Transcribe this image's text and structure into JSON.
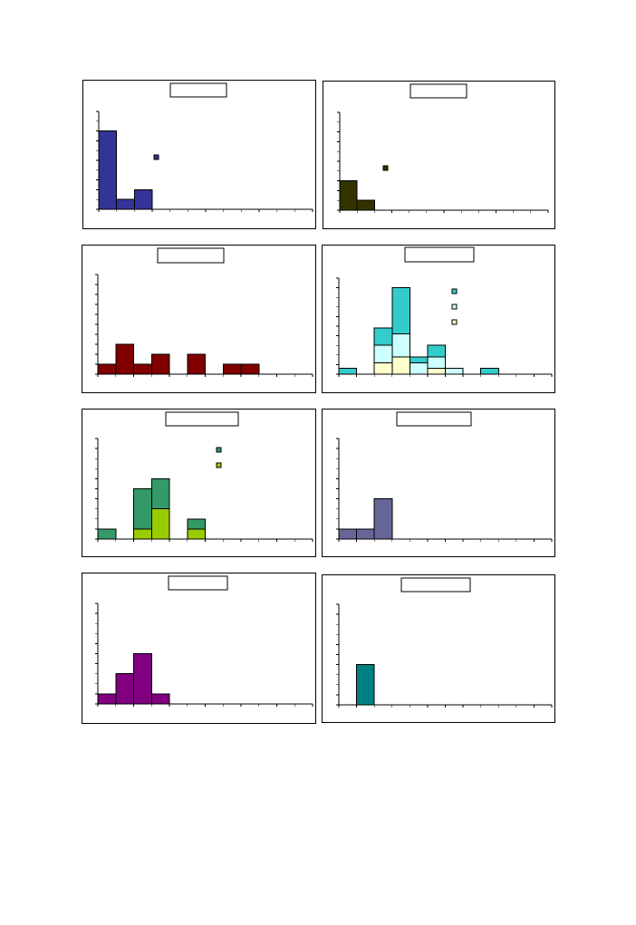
{
  "chart_data": [
    {
      "type": "bar",
      "title": "",
      "ylim": [
        0,
        10
      ],
      "x_bins": 12,
      "grid": false,
      "series": [
        {
          "name": "",
          "color": "#333399",
          "values": [
            8,
            1,
            2,
            0,
            0,
            0,
            0,
            0,
            0,
            0,
            0,
            0
          ]
        }
      ],
      "legend": "center"
    },
    {
      "type": "bar",
      "title": "",
      "ylim": [
        0,
        10
      ],
      "x_bins": 12,
      "grid": false,
      "series": [
        {
          "name": "",
          "color": "#333300",
          "values": [
            3,
            1,
            0,
            0,
            0,
            0,
            0,
            0,
            0,
            0,
            0,
            0
          ]
        }
      ],
      "legend": "center"
    },
    {
      "type": "bar",
      "title": "",
      "ylim": [
        0,
        10
      ],
      "x_bins": 12,
      "grid": false,
      "series": [
        {
          "name": "",
          "color": "#800000",
          "values": [
            1,
            3,
            1,
            2,
            0,
            2,
            0,
            1,
            1,
            0,
            0,
            0
          ]
        }
      ],
      "legend": "none"
    },
    {
      "type": "bar",
      "stacked": true,
      "title": "",
      "ylim": [
        0,
        10
      ],
      "x_bins": 12,
      "grid": false,
      "series": [
        {
          "name": "",
          "color": "#ffffcc",
          "values": [
            0,
            0,
            1.2,
            1.8,
            0,
            0.6,
            0,
            0,
            0,
            0,
            0,
            0
          ]
        },
        {
          "name": "",
          "color": "#ccffff",
          "values": [
            0,
            0,
            1.8,
            2.4,
            1.2,
            1.2,
            0.6,
            0,
            0,
            0,
            0,
            0
          ]
        },
        {
          "name": "",
          "color": "#33cccc",
          "values": [
            0.6,
            0,
            1.8,
            4.8,
            0.6,
            1.2,
            0,
            0,
            0.6,
            0,
            0,
            0
          ]
        }
      ],
      "legend": "top-right"
    },
    {
      "type": "bar",
      "stacked": true,
      "title": "",
      "ylim": [
        0,
        10
      ],
      "x_bins": 12,
      "grid": false,
      "series": [
        {
          "name": "",
          "color": "#99cc00",
          "values": [
            0,
            0,
            1,
            3,
            0,
            1,
            0,
            0,
            0,
            0,
            0,
            0
          ]
        },
        {
          "name": "",
          "color": "#339966",
          "values": [
            1,
            0,
            4,
            3,
            0,
            1,
            0,
            0,
            0,
            0,
            0,
            0
          ]
        }
      ],
      "legend": "top-right"
    },
    {
      "type": "bar",
      "title": "",
      "ylim": [
        0,
        10
      ],
      "x_bins": 12,
      "grid": false,
      "series": [
        {
          "name": "",
          "color": "#666699",
          "values": [
            1,
            1,
            4,
            0,
            0,
            0,
            0,
            0,
            0,
            0,
            0,
            0
          ]
        }
      ],
      "legend": "none"
    },
    {
      "type": "bar",
      "title": "",
      "ylim": [
        0,
        10
      ],
      "x_bins": 12,
      "grid": false,
      "series": [
        {
          "name": "",
          "color": "#800080",
          "values": [
            1,
            3,
            5,
            1,
            0,
            0,
            0,
            0,
            0,
            0,
            0,
            0
          ]
        }
      ],
      "legend": "none"
    },
    {
      "type": "bar",
      "title": "",
      "ylim": [
        0,
        10
      ],
      "x_bins": 12,
      "grid": false,
      "series": [
        {
          "name": "",
          "color": "#008080",
          "values": [
            0,
            4,
            0,
            0,
            0,
            0,
            0,
            0,
            0,
            0,
            0,
            0
          ]
        }
      ],
      "legend": "none"
    }
  ]
}
